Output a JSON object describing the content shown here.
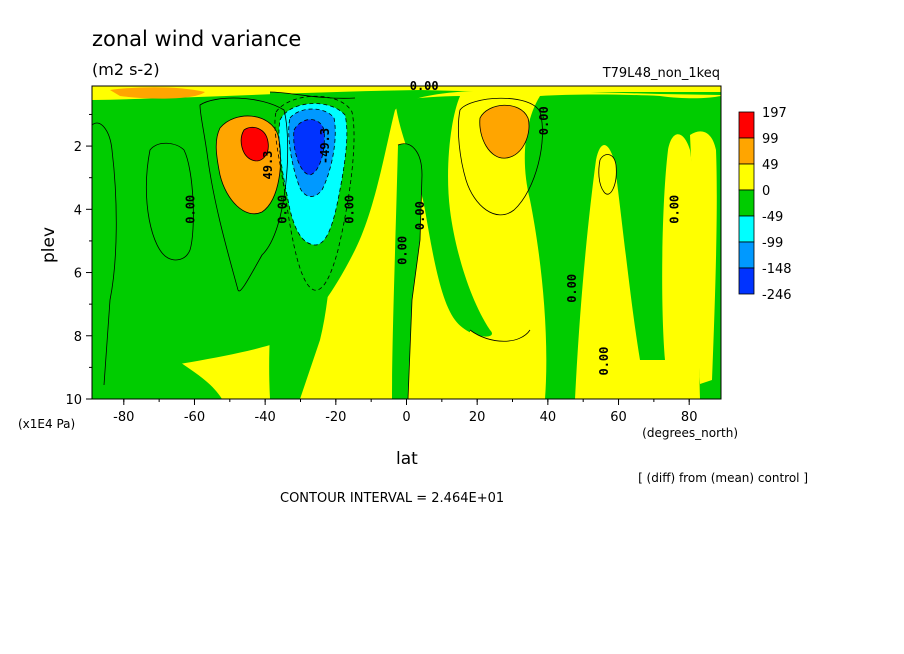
{
  "chart_data": {
    "type": "contour",
    "title": "zonal wind variance",
    "units": "(m2 s-2)",
    "run_label": "T79L48_non_1keq",
    "xlabel": "lat",
    "xunits": "(degrees_north)",
    "ylabel": "plev",
    "yunits": "(x1E4 Pa)",
    "x_ticks": [
      -80,
      -60,
      -40,
      -20,
      0,
      20,
      40,
      60,
      80
    ],
    "x_tick_labels": [
      "-80",
      "-60",
      "-40",
      "-20",
      "0",
      "20",
      "40",
      "60",
      "80"
    ],
    "y_ticks": [
      2,
      4,
      6,
      8,
      10
    ],
    "y_tick_labels": [
      "2",
      "4",
      "6",
      "8",
      "10"
    ],
    "xlim": [
      -89,
      89
    ],
    "ylim": [
      10,
      0.1
    ],
    "y_reversed": true,
    "legend_position": "right",
    "colorbar": {
      "labels": [
        "197",
        "99",
        "49",
        "0",
        "-49",
        "-99",
        "-148",
        "-246"
      ],
      "colors": [
        "#ff0000",
        "#ffa500",
        "#ffff00",
        "#00cc00",
        "#00ffff",
        "#0099ff",
        "#0033ff"
      ]
    },
    "contour_labels": [
      {
        "text": "0.00",
        "lat": 5,
        "plev": 0.1
      },
      {
        "text": "0.00",
        "lat": -60,
        "plev": 4
      },
      {
        "text": "0.00",
        "lat": -34,
        "plev": 4
      },
      {
        "text": "0.00",
        "lat": -15,
        "plev": 4
      },
      {
        "text": "0.00",
        "lat": 5,
        "plev": 4.2
      },
      {
        "text": "0.00",
        "lat": 0,
        "plev": 5.3
      },
      {
        "text": "0.00",
        "lat": 48,
        "plev": 6.5
      },
      {
        "text": "0.00",
        "lat": 57,
        "plev": 8.8
      },
      {
        "text": "0.00",
        "lat": 77,
        "plev": 4
      },
      {
        "text": "0.00",
        "lat": 40,
        "plev": 1.2
      },
      {
        "text": "49.3",
        "lat": -38,
        "plev": 2.6
      },
      {
        "text": "-49.3",
        "lat": -22,
        "plev": 2
      }
    ],
    "extremes": [
      {
        "label": "max",
        "lat": -43,
        "plev": 2,
        "approx_value": 197
      },
      {
        "label": "max",
        "lat": 28,
        "plev": 1.4,
        "approx_value": 99
      },
      {
        "label": "min",
        "lat": -29,
        "plev": 2,
        "approx_value": -246
      }
    ]
  },
  "footer": {
    "diff_note": "[ (diff) from (mean) control ]",
    "contour_interval": "CONTOUR INTERVAL = 2.464E+01"
  }
}
